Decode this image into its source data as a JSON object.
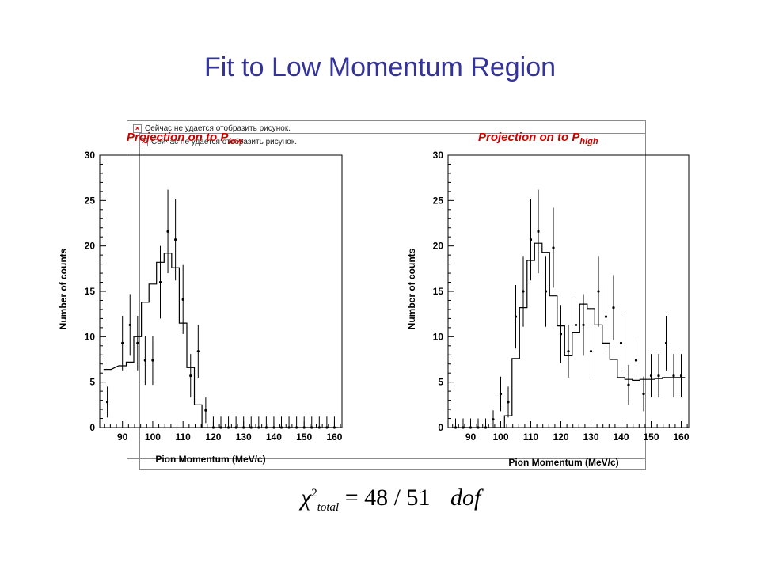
{
  "slide": {
    "title": "Fit to Low Momentum Region",
    "placeholder_msg": "Сейчас не удается отобразить рисунок.",
    "formula": {
      "symbol": "χ",
      "superscript": "2",
      "subscript": "total",
      "equation": "= 48 / 51",
      "unit": "dof"
    }
  },
  "chart_data": [
    {
      "type": "histogram",
      "title": "Projection on to P",
      "title_subscript": "low",
      "xlabel": "Pion Momentum (MeV/c)",
      "ylabel": "Number of counts",
      "xlim": [
        82.5,
        162.5
      ],
      "ylim": [
        0,
        30
      ],
      "x_ticks": [
        90,
        100,
        110,
        120,
        130,
        140,
        150,
        160
      ],
      "y_ticks": [
        0,
        5,
        10,
        15,
        20,
        25,
        30
      ],
      "x": [
        85,
        90,
        92.5,
        95,
        97.5,
        100,
        102.5,
        105,
        107.5,
        110,
        112.5,
        115,
        117.5,
        120,
        122.5,
        125,
        127.5,
        130,
        132.5,
        135,
        137.5,
        140,
        142.5,
        145,
        147.5,
        150,
        152.5,
        155,
        157.5,
        160
      ],
      "data": [
        2.8,
        9.3,
        11.3,
        9.3,
        7.4,
        7.4,
        16.0,
        21.6,
        20.7,
        14.1,
        5.7,
        8.4,
        1.9,
        0,
        0,
        0,
        0,
        0,
        0,
        0,
        0,
        0,
        0,
        0,
        0,
        0,
        0,
        0,
        0,
        0
      ],
      "errors": [
        1.7,
        3.0,
        3.4,
        3.0,
        2.7,
        2.7,
        4.0,
        4.6,
        4.5,
        3.8,
        2.4,
        2.9,
        1.4,
        1.2,
        1.2,
        1.2,
        1.2,
        1.2,
        1.2,
        1.2,
        1.2,
        1.2,
        1.2,
        1.2,
        1.2,
        1.2,
        1.2,
        1.2,
        1.2,
        1.2
      ],
      "fit": [
        6.4,
        6.8,
        7.2,
        10.0,
        13.8,
        15.8,
        18.2,
        19.2,
        17.6,
        11.5,
        6.6,
        2.5,
        0,
        0,
        0,
        0,
        0,
        0,
        0,
        0,
        0,
        0,
        0,
        0,
        0,
        0,
        0,
        0,
        0,
        0
      ],
      "grid": false,
      "style": "error bars with stepped fit line"
    },
    {
      "type": "histogram",
      "title": "Projection on to P",
      "title_subscript": "high",
      "xlabel": "Pion Momentum (MeV/c)",
      "ylabel": "Number of counts",
      "xlim": [
        82.5,
        162.5
      ],
      "ylim": [
        0,
        30
      ],
      "x_ticks": [
        90,
        100,
        110,
        120,
        130,
        140,
        150,
        160
      ],
      "y_ticks": [
        0,
        5,
        10,
        15,
        20,
        25,
        30
      ],
      "x": [
        85,
        87.5,
        90,
        92.5,
        95,
        97.5,
        100,
        102.5,
        105,
        107.5,
        110,
        112.5,
        115,
        117.5,
        120,
        122.5,
        125,
        127.5,
        130,
        132.5,
        135,
        137.5,
        140,
        142.5,
        145,
        147.5,
        150,
        152.5,
        155,
        157.5,
        160
      ],
      "data": [
        0,
        0,
        0,
        0,
        0,
        0.9,
        3.7,
        2.8,
        12.2,
        15.0,
        20.7,
        21.6,
        15.0,
        19.8,
        10.3,
        8.4,
        11.3,
        11.3,
        8.4,
        15.0,
        12.2,
        13.2,
        9.3,
        4.7,
        7.4,
        3.7,
        5.7,
        5.7,
        9.3,
        5.7,
        5.7
      ],
      "errors": [
        1.0,
        1.0,
        1.0,
        1.0,
        1.0,
        1.0,
        1.9,
        1.7,
        3.5,
        3.9,
        4.5,
        4.6,
        3.9,
        4.4,
        3.2,
        2.9,
        3.4,
        3.4,
        2.9,
        3.9,
        3.5,
        3.6,
        3.0,
        2.2,
        2.7,
        1.9,
        2.4,
        2.4,
        3.0,
        2.4,
        2.4
      ],
      "fit": [
        0,
        0,
        0,
        0,
        0,
        0,
        0,
        1.3,
        7.6,
        13.2,
        18.4,
        20.3,
        19.3,
        14.5,
        11.2,
        7.9,
        10.5,
        13.6,
        13.1,
        11.3,
        9.3,
        7.5,
        5.5,
        5.3,
        5.2,
        5.3,
        5.3,
        5.4,
        5.5,
        5.5,
        5.5
      ],
      "grid": false,
      "style": "error bars with stepped fit line"
    }
  ]
}
